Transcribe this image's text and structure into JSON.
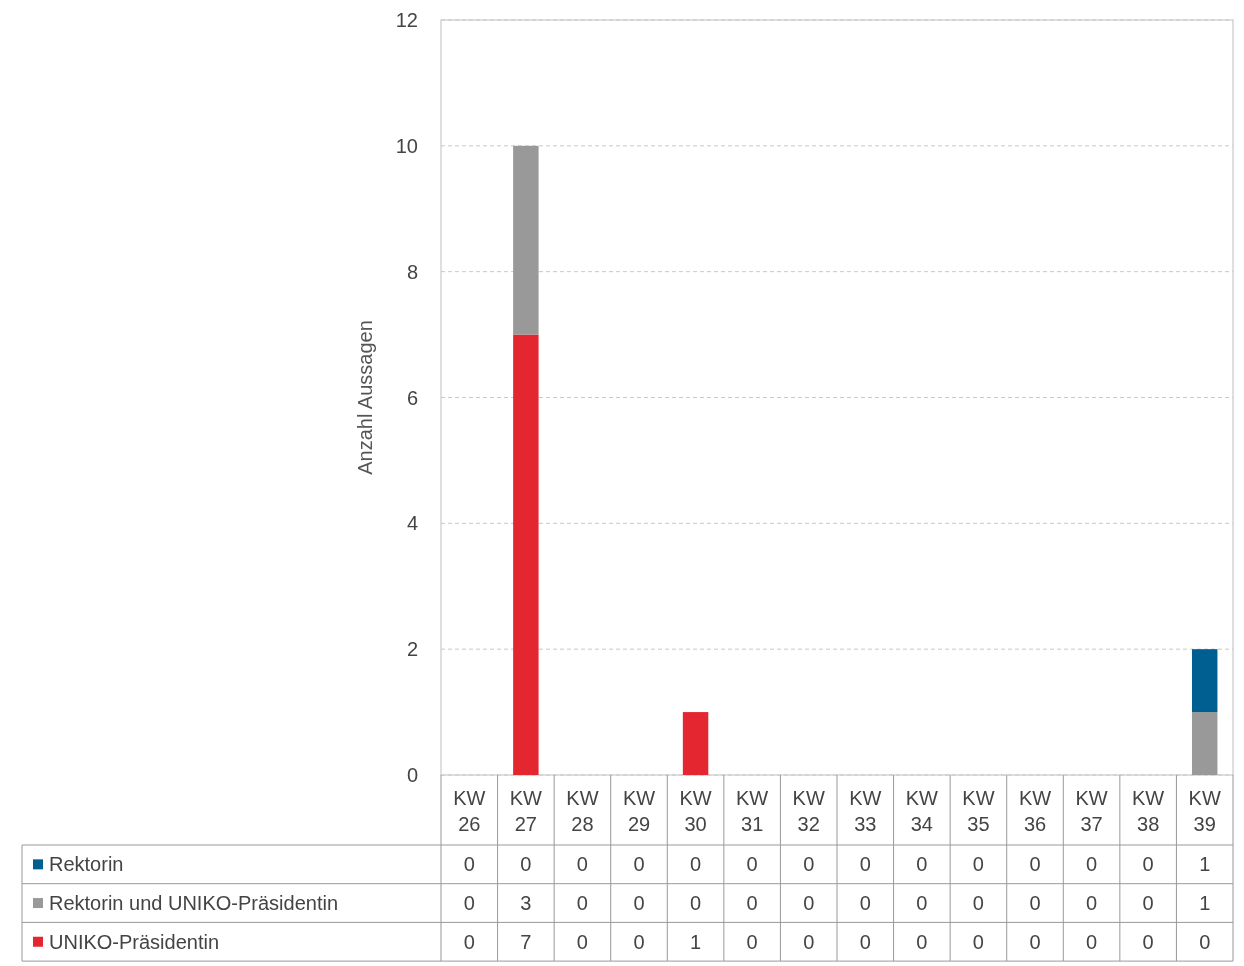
{
  "chart_data": {
    "type": "bar",
    "stacked": true,
    "ylabel": "Anzahl Aussagen",
    "categories": [
      "KW 26",
      "KW 27",
      "KW 28",
      "KW 29",
      "KW 30",
      "KW 31",
      "KW 32",
      "KW 33",
      "KW 34",
      "KW 35",
      "KW 36",
      "KW 37",
      "KW 38",
      "KW 39"
    ],
    "series": [
      {
        "name": "UNIKO-Präsidentin",
        "color": "#e3262f",
        "values": [
          0,
          7,
          0,
          0,
          1,
          0,
          0,
          0,
          0,
          0,
          0,
          0,
          0,
          0
        ]
      },
      {
        "name": "Rektorin und UNIKO-Präsidentin",
        "color": "#999999",
        "values": [
          0,
          3,
          0,
          0,
          0,
          0,
          0,
          0,
          0,
          0,
          0,
          0,
          0,
          1
        ]
      },
      {
        "name": "Rektorin",
        "color": "#005f91",
        "values": [
          0,
          0,
          0,
          0,
          0,
          0,
          0,
          0,
          0,
          0,
          0,
          0,
          0,
          1
        ]
      }
    ],
    "ylim": [
      0,
      12
    ],
    "yticks": [
      0,
      2,
      4,
      6,
      8,
      10,
      12
    ],
    "grid": "y",
    "legend": "bottom",
    "data_labels": true
  }
}
